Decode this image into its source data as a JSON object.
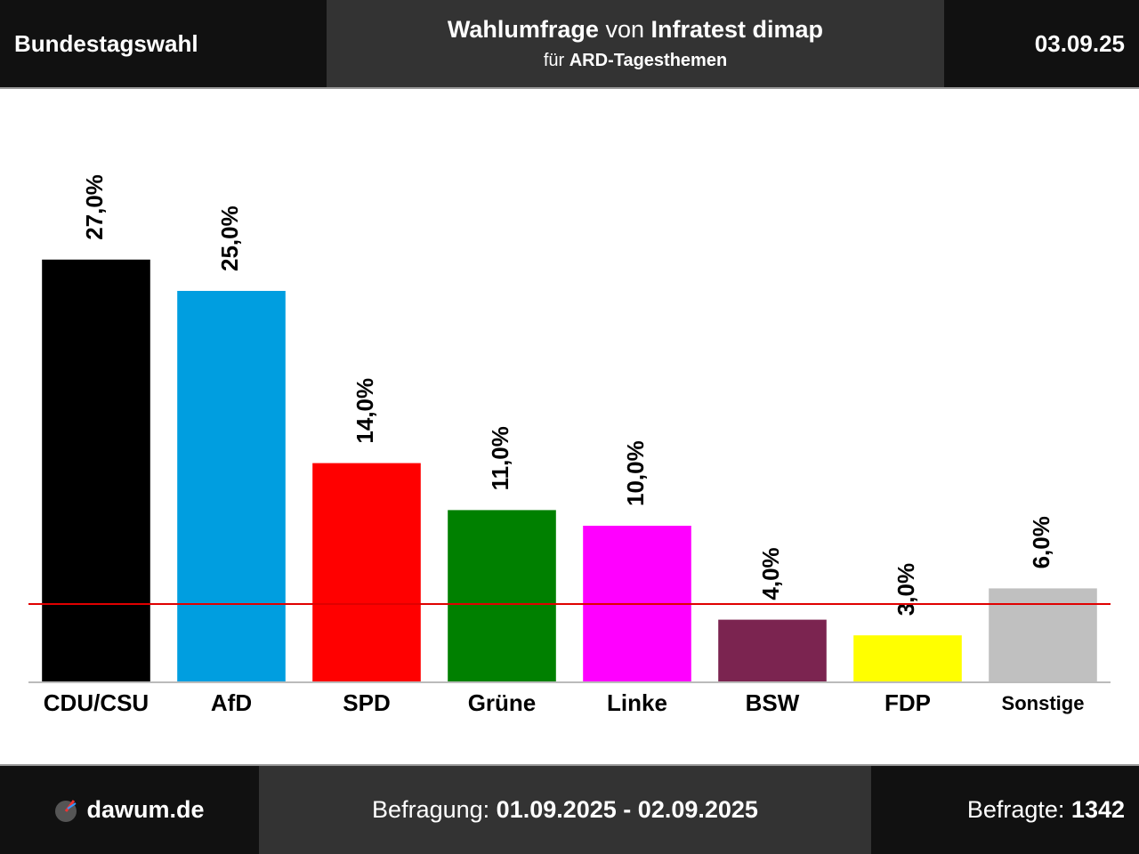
{
  "header": {
    "left": "Bundestagswahl",
    "title": [
      "Wahlumfrage",
      "von",
      "Infratest dimap"
    ],
    "subtitle": [
      "für",
      "ARD-Tagesthemen"
    ],
    "date": "03.09.25"
  },
  "chart_data": {
    "type": "bar",
    "categories": [
      "CDU/CSU",
      "AfD",
      "SPD",
      "Grüne",
      "Linke",
      "BSW",
      "FDP",
      "Sonstige"
    ],
    "values": [
      27,
      25,
      14,
      11,
      10,
      4,
      3,
      6
    ],
    "value_labels": [
      "27,0%",
      "25,0%",
      "14,0%",
      "11,0%",
      "10,0%",
      "4,0%",
      "3,0%",
      "6,0%"
    ],
    "colors": [
      "#000000",
      "#009ee0",
      "#ff0000",
      "#008000",
      "#ff00ff",
      "#7b2450",
      "#ffff00",
      "#c0c0c0"
    ],
    "ylim": [
      0,
      30
    ],
    "threshold": {
      "value": 5,
      "color": "#e00000"
    }
  },
  "footer": {
    "brand": "dawum.de",
    "period_label": "Befragung:",
    "period": "01.09.2025 - 02.09.2025",
    "sample_label": "Befragte:",
    "sample": 1342
  }
}
